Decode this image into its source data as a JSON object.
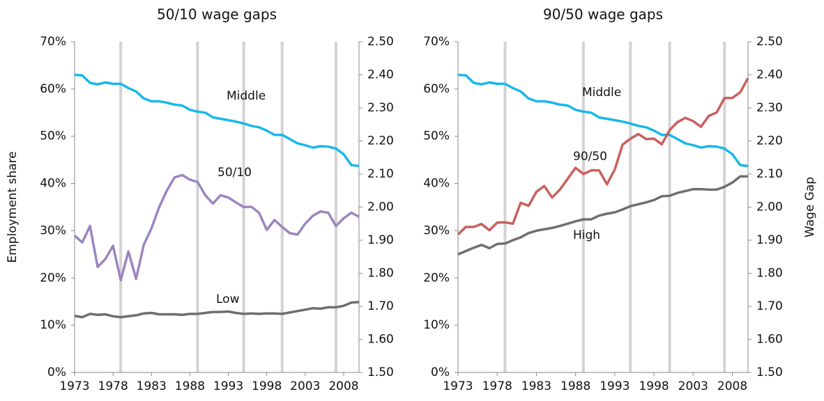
{
  "chart_data": [
    {
      "type": "line",
      "title": "50/10 wage gaps",
      "ylabel": "Employment share",
      "x": [
        1973,
        1974,
        1975,
        1976,
        1977,
        1978,
        1979,
        1980,
        1981,
        1982,
        1983,
        1984,
        1985,
        1986,
        1987,
        1988,
        1989,
        1990,
        1991,
        1992,
        1993,
        1994,
        1995,
        1996,
        1997,
        1998,
        1999,
        2000,
        2001,
        2002,
        2003,
        2004,
        2005,
        2006,
        2007,
        2008,
        2009,
        2010
      ],
      "xlim": [
        1973,
        2010
      ],
      "xticks": [
        1973,
        1978,
        1983,
        1988,
        1993,
        1998,
        2003,
        2008
      ],
      "ylim": [
        0,
        70
      ],
      "yticks": [
        {
          "value": 0,
          "label": "0%"
        },
        {
          "value": 10,
          "label": "10%"
        },
        {
          "value": 20,
          "label": "20%"
        },
        {
          "value": 30,
          "label": "30%"
        },
        {
          "value": 40,
          "label": "40%"
        },
        {
          "value": 50,
          "label": "50%"
        },
        {
          "value": 60,
          "label": "60%"
        },
        {
          "value": 70,
          "label": "70%"
        }
      ],
      "y2lim": [
        1.5,
        2.5
      ],
      "y2ticks": [
        {
          "value": 1.5,
          "label": "1.50"
        },
        {
          "value": 1.6,
          "label": "1.60"
        },
        {
          "value": 1.7,
          "label": "1.70"
        },
        {
          "value": 1.8,
          "label": "1.80"
        },
        {
          "value": 1.9,
          "label": "1.90"
        },
        {
          "value": 2.0,
          "label": "2.00"
        },
        {
          "value": 2.1,
          "label": "2.10"
        },
        {
          "value": 2.2,
          "label": "2.20"
        },
        {
          "value": 2.3,
          "label": "2.30"
        },
        {
          "value": 2.4,
          "label": "2.40"
        },
        {
          "value": 2.5,
          "label": "2.50"
        }
      ],
      "vertical_lines": [
        1979,
        1989,
        1995,
        2000,
        2007
      ],
      "series": [
        {
          "name": "Middle",
          "color": "#1ab7ea",
          "values": [
            63,
            62.9,
            61.3,
            61,
            61.4,
            61.1,
            61.1,
            60.2,
            59.5,
            58,
            57.4,
            57.4,
            57.1,
            56.7,
            56.5,
            55.6,
            55.2,
            55,
            54,
            53.7,
            53.4,
            53.1,
            52.7,
            52.2,
            51.9,
            51.2,
            50.3,
            50.3,
            49.4,
            48.5,
            48.1,
            47.6,
            47.9,
            47.8,
            47.4,
            46.2,
            43.9,
            43.7
          ]
        },
        {
          "name": "50/10",
          "color": "#9b86c0",
          "axis": "y2",
          "values": [
            1.914,
            1.893,
            1.943,
            1.819,
            1.843,
            1.883,
            1.779,
            1.866,
            1.783,
            1.886,
            1.936,
            2.0,
            2.05,
            2.09,
            2.097,
            2.083,
            2.076,
            2.036,
            2.011,
            2.036,
            2.029,
            2.014,
            2.0,
            2.001,
            1.983,
            1.931,
            1.961,
            1.94,
            1.921,
            1.917,
            1.95,
            1.974,
            1.987,
            1.983,
            1.943,
            1.966,
            1.983,
            1.971
          ]
        },
        {
          "name": "Low",
          "color": "#6d6e70",
          "values": [
            12,
            11.7,
            12.4,
            12.2,
            12.3,
            11.9,
            11.7,
            11.9,
            12.1,
            12.5,
            12.6,
            12.3,
            12.3,
            12.3,
            12.2,
            12.4,
            12.4,
            12.6,
            12.8,
            12.8,
            12.9,
            12.6,
            12.4,
            12.5,
            12.4,
            12.5,
            12.5,
            12.4,
            12.7,
            13,
            13.3,
            13.6,
            13.5,
            13.8,
            13.8,
            14.1,
            14.8,
            14.9
          ]
        }
      ]
    },
    {
      "type": "line",
      "title": "90/50 wage gaps",
      "y2label": "Wage Gap",
      "x": [
        1973,
        1974,
        1975,
        1976,
        1977,
        1978,
        1979,
        1980,
        1981,
        1982,
        1983,
        1984,
        1985,
        1986,
        1987,
        1988,
        1989,
        1990,
        1991,
        1992,
        1993,
        1994,
        1995,
        1996,
        1997,
        1998,
        1999,
        2000,
        2001,
        2002,
        2003,
        2004,
        2005,
        2006,
        2007,
        2008,
        2009,
        2010
      ],
      "xlim": [
        1973,
        2010
      ],
      "xticks": [
        1973,
        1978,
        1983,
        1988,
        1993,
        1998,
        2003,
        2008
      ],
      "ylim": [
        0,
        70
      ],
      "yticks": [
        {
          "value": 0,
          "label": "0%"
        },
        {
          "value": 10,
          "label": "10%"
        },
        {
          "value": 20,
          "label": "20%"
        },
        {
          "value": 30,
          "label": "30%"
        },
        {
          "value": 40,
          "label": "40%"
        },
        {
          "value": 50,
          "label": "50%"
        },
        {
          "value": 60,
          "label": "60%"
        },
        {
          "value": 70,
          "label": "70%"
        }
      ],
      "y2lim": [
        1.5,
        2.5
      ],
      "y2ticks": [
        {
          "value": 1.5,
          "label": "1.50"
        },
        {
          "value": 1.6,
          "label": "1.60"
        },
        {
          "value": 1.7,
          "label": "1.70"
        },
        {
          "value": 1.8,
          "label": "1.80"
        },
        {
          "value": 1.9,
          "label": "1.90"
        },
        {
          "value": 2.0,
          "label": "2.00"
        },
        {
          "value": 2.1,
          "label": "2.10"
        },
        {
          "value": 2.2,
          "label": "2.20"
        },
        {
          "value": 2.3,
          "label": "2.30"
        },
        {
          "value": 2.4,
          "label": "2.40"
        },
        {
          "value": 2.5,
          "label": "2.50"
        }
      ],
      "vertical_lines": [
        1979,
        1989,
        1995,
        2000,
        2007
      ],
      "series": [
        {
          "name": "Middle",
          "color": "#1ab7ea",
          "values": [
            63,
            62.9,
            61.3,
            61,
            61.4,
            61.1,
            61.1,
            60.2,
            59.5,
            58,
            57.4,
            57.4,
            57.1,
            56.7,
            56.5,
            55.6,
            55.2,
            55,
            54,
            53.7,
            53.4,
            53.1,
            52.7,
            52.2,
            51.9,
            51.2,
            50.3,
            50.3,
            49.4,
            48.5,
            48.1,
            47.6,
            47.9,
            47.8,
            47.4,
            46.2,
            43.9,
            43.7
          ]
        },
        {
          "name": "90/50",
          "color": "#c9605c",
          "axis": "y2",
          "values": [
            1.917,
            1.94,
            1.94,
            1.949,
            1.93,
            1.953,
            1.954,
            1.95,
            2.013,
            2.004,
            2.046,
            2.064,
            2.029,
            2.053,
            2.086,
            2.119,
            2.1,
            2.111,
            2.111,
            2.069,
            2.114,
            2.189,
            2.207,
            2.221,
            2.206,
            2.207,
            2.19,
            2.233,
            2.257,
            2.27,
            2.26,
            2.243,
            2.276,
            2.286,
            2.33,
            2.33,
            2.347,
            2.39
          ]
        },
        {
          "name": "High",
          "color": "#6d6e70",
          "values": [
            25,
            25.7,
            26.4,
            27,
            26.3,
            27.2,
            27.3,
            28,
            28.6,
            29.5,
            30,
            30.3,
            30.6,
            31,
            31.5,
            32,
            32.4,
            32.4,
            33.2,
            33.6,
            33.9,
            34.5,
            35.2,
            35.6,
            36,
            36.5,
            37.3,
            37.4,
            38,
            38.4,
            38.8,
            38.8,
            38.7,
            38.7,
            39.3,
            40.2,
            41.5,
            41.5
          ]
        }
      ]
    }
  ]
}
